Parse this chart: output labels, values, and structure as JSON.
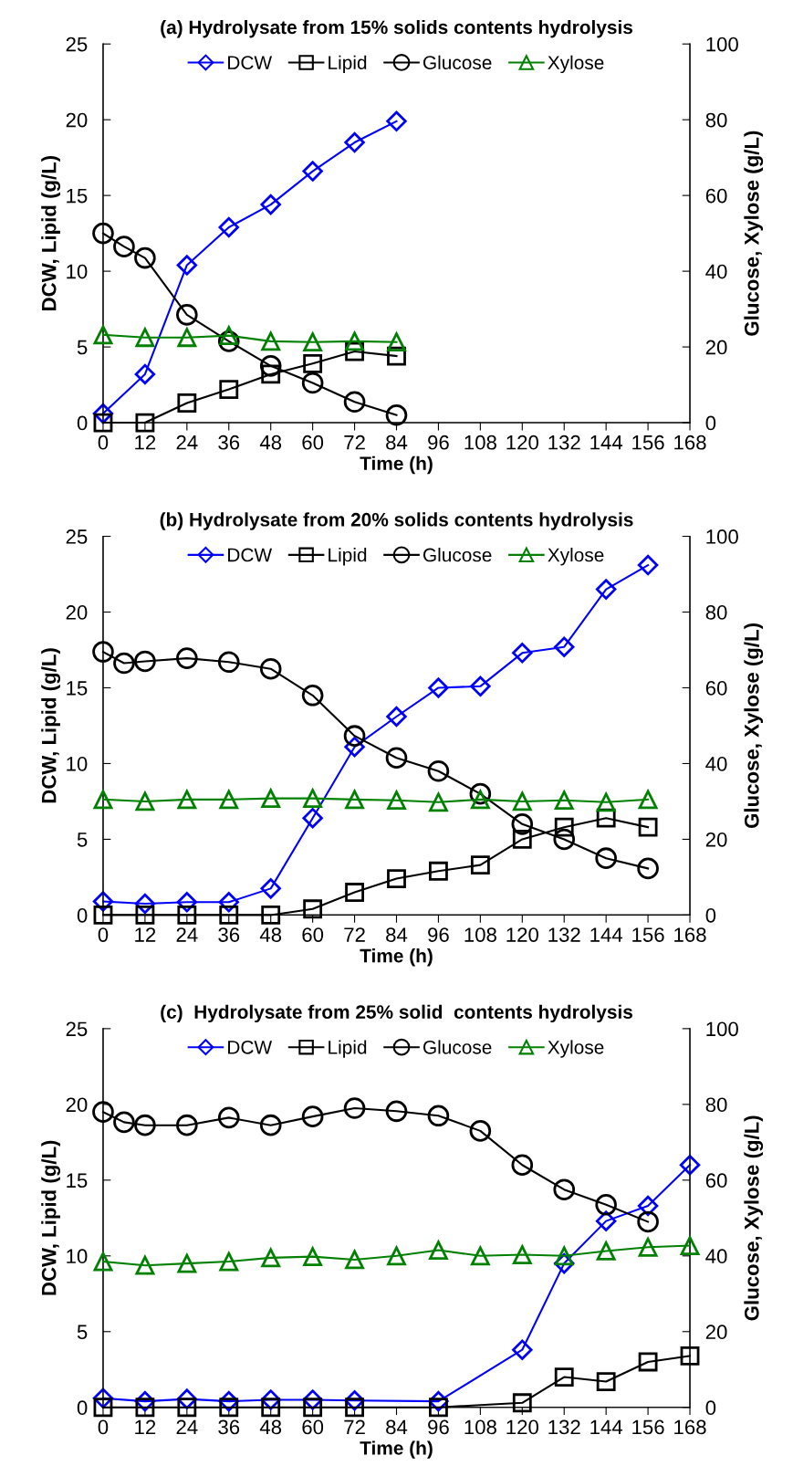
{
  "chart_data": [
    {
      "type": "line",
      "title": "(a) Hydrolysate from 15% solids contents hydrolysis",
      "xlabel": "Time (h)",
      "ylabel": "DCW, Lipid (g/L)",
      "y2label": "Glucose, Xylose (g/L)",
      "xlim": [
        0,
        168
      ],
      "xticks": [
        0,
        12,
        24,
        36,
        48,
        60,
        72,
        84,
        96,
        108,
        120,
        132,
        144,
        156,
        168
      ],
      "ylim": [
        0,
        25
      ],
      "yticks": [
        0,
        5,
        10,
        15,
        20,
        25
      ],
      "y2lim": [
        0,
        100
      ],
      "y2ticks": [
        0,
        20,
        40,
        60,
        80,
        100
      ],
      "legend": "top",
      "grid": false,
      "series": [
        {
          "name": "DCW",
          "color": "#0000ff",
          "marker": "diamond",
          "x": [
            0,
            12,
            24,
            36,
            48,
            60,
            72,
            84
          ],
          "values": [
            0.6,
            3.2,
            10.4,
            12.9,
            14.4,
            16.6,
            18.5,
            19.9
          ]
        },
        {
          "name": "Lipid",
          "color": "#000000",
          "marker": "square",
          "x": [
            0,
            12,
            24,
            36,
            48,
            60,
            72,
            84
          ],
          "values": [
            0,
            0,
            1.3,
            2.2,
            3.2,
            3.9,
            4.7,
            4.4
          ]
        },
        {
          "name": "Glucose",
          "color": "#000000",
          "marker": "circle",
          "axis": "y2",
          "x": [
            0,
            6,
            12,
            24,
            36,
            48,
            60,
            72,
            84
          ],
          "values": [
            50,
            46.5,
            43.5,
            28.5,
            21.5,
            15,
            10.5,
            5.5,
            2
          ]
        },
        {
          "name": "Xylose",
          "color": "#008000",
          "marker": "triangle",
          "axis": "y2",
          "x": [
            0,
            12,
            24,
            36,
            48,
            60,
            72,
            84
          ],
          "values": [
            23.2,
            22.5,
            22.5,
            23,
            21.5,
            21.3,
            21.5,
            21.3
          ]
        }
      ]
    },
    {
      "type": "line",
      "title": "(b) Hydrolysate from 20% solids contents hydrolysis",
      "xlabel": "Time (h)",
      "ylabel": "DCW, Lipid (g/L)",
      "y2label": "Glucose, Xylose (g/L)",
      "xlim": [
        0,
        168
      ],
      "xticks": [
        0,
        12,
        24,
        36,
        48,
        60,
        72,
        84,
        96,
        108,
        120,
        132,
        144,
        156,
        168
      ],
      "ylim": [
        0,
        25
      ],
      "yticks": [
        0,
        5,
        10,
        15,
        20,
        25
      ],
      "y2lim": [
        0,
        100
      ],
      "y2ticks": [
        0,
        20,
        40,
        60,
        80,
        100
      ],
      "legend": "top",
      "grid": false,
      "series": [
        {
          "name": "DCW",
          "color": "#0000ff",
          "marker": "diamond",
          "x": [
            0,
            12,
            24,
            36,
            48,
            60,
            72,
            84,
            96,
            108,
            120,
            132,
            144,
            156
          ],
          "values": [
            0.9,
            0.75,
            0.85,
            0.85,
            1.75,
            6.4,
            11.1,
            13.1,
            15,
            15.1,
            17.3,
            17.7,
            21.5,
            23.1
          ]
        },
        {
          "name": "Lipid",
          "color": "#000000",
          "marker": "square",
          "x": [
            0,
            12,
            24,
            36,
            48,
            60,
            72,
            84,
            96,
            108,
            120,
            132,
            144,
            156
          ],
          "values": [
            0,
            0,
            0,
            0,
            0,
            0.4,
            1.5,
            2.4,
            2.9,
            3.3,
            5,
            5.8,
            6.4,
            5.8
          ]
        },
        {
          "name": "Glucose",
          "color": "#000000",
          "marker": "circle",
          "axis": "y2",
          "x": [
            0,
            6,
            12,
            24,
            36,
            48,
            60,
            72,
            84,
            96,
            108,
            120,
            132,
            144,
            156
          ],
          "values": [
            69.5,
            66.5,
            67,
            67.8,
            66.8,
            65,
            58,
            47.3,
            41.5,
            38,
            32,
            24,
            20,
            15,
            12.3
          ]
        },
        {
          "name": "Xylose",
          "color": "#008000",
          "marker": "triangle",
          "axis": "y2",
          "x": [
            0,
            12,
            24,
            36,
            48,
            60,
            72,
            84,
            96,
            108,
            120,
            132,
            144,
            156
          ],
          "values": [
            30.5,
            30,
            30.5,
            30.5,
            30.8,
            30.8,
            30.5,
            30.3,
            29.8,
            30.5,
            30,
            30.3,
            29.8,
            30.5
          ]
        }
      ]
    },
    {
      "type": "line",
      "title": "(c)  Hydrolysate from 25% solid  contents hydrolysis",
      "xlabel": "Time (h)",
      "ylabel": "DCW, Lipid (g/L)",
      "y2label": "Glucose, Xylose (g/L)",
      "xlim": [
        0,
        168
      ],
      "xticks": [
        0,
        12,
        24,
        36,
        48,
        60,
        72,
        84,
        96,
        108,
        120,
        132,
        144,
        156,
        168
      ],
      "ylim": [
        0,
        25
      ],
      "yticks": [
        0,
        5,
        10,
        15,
        20,
        25
      ],
      "y2lim": [
        0,
        100
      ],
      "y2ticks": [
        0,
        20,
        40,
        60,
        80,
        100
      ],
      "legend": "top",
      "grid": false,
      "series": [
        {
          "name": "DCW",
          "color": "#0000ff",
          "marker": "diamond",
          "x": [
            0,
            12,
            24,
            36,
            48,
            60,
            72,
            96,
            120,
            132,
            144,
            156,
            168
          ],
          "values": [
            0.6,
            0.4,
            0.55,
            0.4,
            0.5,
            0.5,
            0.45,
            0.4,
            3.8,
            9.5,
            12.3,
            13.3,
            16.0
          ]
        },
        {
          "name": "Lipid",
          "color": "#000000",
          "marker": "square",
          "x": [
            0,
            12,
            24,
            36,
            48,
            60,
            72,
            96,
            120,
            132,
            144,
            156,
            168
          ],
          "values": [
            0,
            0,
            0,
            0,
            0,
            0,
            0,
            0,
            0.3,
            2.0,
            1.7,
            3.0,
            3.4
          ]
        },
        {
          "name": "Glucose",
          "color": "#000000",
          "marker": "circle",
          "axis": "y2",
          "x": [
            0,
            6,
            12,
            24,
            36,
            48,
            60,
            72,
            84,
            96,
            108,
            120,
            132,
            144,
            156
          ],
          "values": [
            78,
            75.3,
            74.5,
            74.5,
            76.5,
            74.5,
            76.8,
            79,
            78.2,
            77,
            73,
            64,
            57.5,
            53.5,
            49
          ]
        },
        {
          "name": "Xylose",
          "color": "#008000",
          "marker": "triangle",
          "axis": "y2",
          "x": [
            0,
            12,
            24,
            36,
            48,
            60,
            72,
            84,
            96,
            108,
            120,
            132,
            144,
            156,
            168
          ],
          "values": [
            38.5,
            37.5,
            38,
            38.5,
            39.5,
            39.8,
            39,
            40,
            41.5,
            40,
            40.3,
            40,
            41.3,
            42.3,
            42.7
          ]
        }
      ]
    }
  ]
}
